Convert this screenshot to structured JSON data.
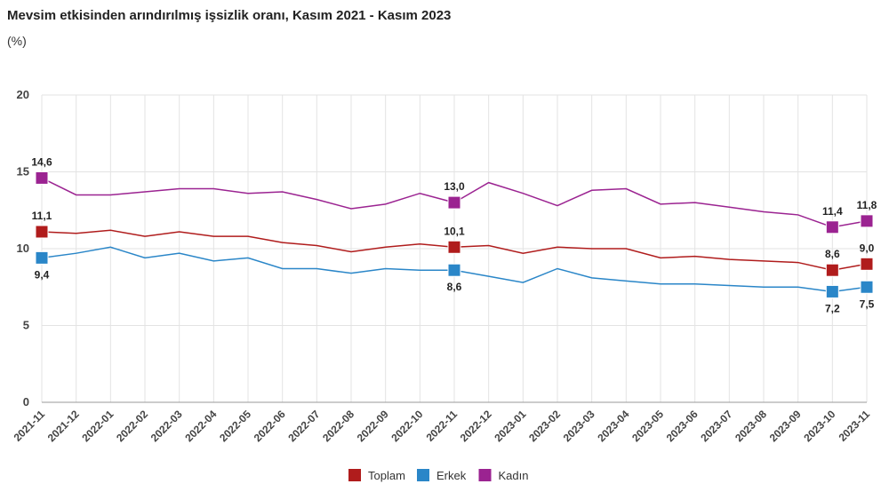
{
  "chart_data": {
    "type": "line",
    "title": "Mevsim etkisinden arındırılmış işsizlik oranı, Kasım 2021 - Kasım 2023",
    "subtitle": "(%)",
    "categories": [
      "2021-11",
      "2021-12",
      "2022-01",
      "2022-02",
      "2022-03",
      "2022-04",
      "2022-05",
      "2022-06",
      "2022-07",
      "2022-08",
      "2022-09",
      "2022-10",
      "2022-11",
      "2022-12",
      "2023-01",
      "2023-02",
      "2023-03",
      "2023-04",
      "2023-05",
      "2023-06",
      "2023-07",
      "2023-08",
      "2023-09",
      "2023-10",
      "2023-11"
    ],
    "series": [
      {
        "name": "Toplam",
        "color": "#b01c1c",
        "values": [
          11.1,
          11.0,
          11.2,
          10.8,
          11.1,
          10.8,
          10.8,
          10.4,
          10.2,
          9.8,
          10.1,
          10.3,
          10.1,
          10.2,
          9.7,
          10.1,
          10.0,
          10.0,
          9.4,
          9.5,
          9.3,
          9.2,
          9.1,
          8.6,
          9.0
        ],
        "value_labels": [
          "11,1",
          null,
          null,
          null,
          null,
          null,
          null,
          null,
          null,
          null,
          null,
          null,
          "10,1",
          null,
          null,
          null,
          null,
          null,
          null,
          null,
          null,
          null,
          null,
          "8,6",
          "9,0"
        ]
      },
      {
        "name": "Erkek",
        "color": "#2a86c8",
        "values": [
          9.4,
          9.7,
          10.1,
          9.4,
          9.7,
          9.2,
          9.4,
          8.7,
          8.7,
          8.4,
          8.7,
          8.6,
          8.6,
          8.2,
          7.8,
          8.7,
          8.1,
          7.9,
          7.7,
          7.7,
          7.6,
          7.5,
          7.5,
          7.2,
          7.5
        ],
        "value_labels": [
          "9,4",
          null,
          null,
          null,
          null,
          null,
          null,
          null,
          null,
          null,
          null,
          null,
          "8,6",
          null,
          null,
          null,
          null,
          null,
          null,
          null,
          null,
          null,
          null,
          "7,2",
          "7,5"
        ]
      },
      {
        "name": "Kadın",
        "color": "#9b2391",
        "values": [
          14.6,
          13.5,
          13.5,
          13.7,
          13.9,
          13.9,
          13.6,
          13.7,
          13.2,
          12.6,
          12.9,
          13.6,
          13.0,
          14.3,
          13.6,
          12.8,
          13.8,
          13.9,
          12.9,
          13.0,
          12.7,
          12.4,
          12.2,
          11.4,
          11.8
        ],
        "value_labels": [
          "14,6",
          null,
          null,
          null,
          null,
          null,
          null,
          null,
          null,
          null,
          null,
          null,
          "13,0",
          null,
          null,
          null,
          null,
          null,
          null,
          null,
          null,
          null,
          null,
          "11,4",
          "11,8"
        ]
      }
    ],
    "ylim": [
      0,
      20
    ],
    "yticks": [
      0,
      5,
      10,
      15,
      20
    ],
    "grid": true,
    "legend": "bottom"
  }
}
